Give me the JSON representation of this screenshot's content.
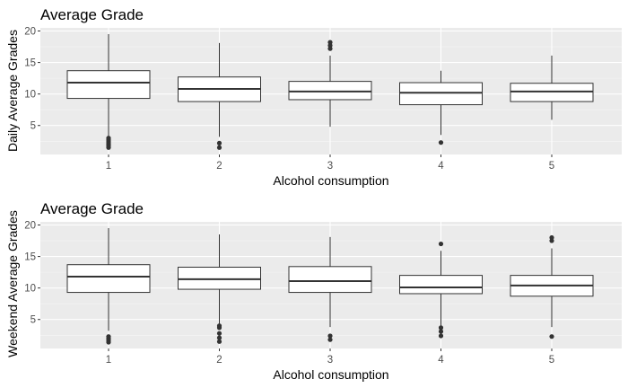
{
  "chart_data": [
    {
      "type": "boxplot",
      "title": "Average Grade",
      "xlabel": "Alcohol consumption",
      "ylabel": "Daily Average Grades",
      "categories": [
        "1",
        "2",
        "3",
        "4",
        "5"
      ],
      "yticks": [
        "5",
        "10",
        "15",
        "20"
      ],
      "ylim": [
        0.4,
        20.5
      ],
      "grid": true,
      "boxes": [
        {
          "category": "1",
          "whisker_low": 3.3,
          "q1": 9.3,
          "median": 11.8,
          "q3": 13.7,
          "whisker_high": 19.5,
          "outliers": [
            1.5,
            1.8,
            2.1,
            2.4,
            2.7,
            3.0
          ]
        },
        {
          "category": "2",
          "whisker_low": 3.2,
          "q1": 8.8,
          "median": 10.8,
          "q3": 12.7,
          "whisker_high": 18.1,
          "outliers": [
            1.5,
            2.2
          ]
        },
        {
          "category": "3",
          "whisker_low": 4.8,
          "q1": 9.1,
          "median": 10.4,
          "q3": 12.0,
          "whisker_high": 16.1,
          "outliers": [
            17.2,
            17.7,
            18.2
          ]
        },
        {
          "category": "4",
          "whisker_low": 3.5,
          "q1": 8.3,
          "median": 10.2,
          "q3": 11.8,
          "whisker_high": 13.7,
          "outliers": [
            2.3
          ]
        },
        {
          "category": "5",
          "whisker_low": 5.9,
          "q1": 8.8,
          "median": 10.4,
          "q3": 11.7,
          "whisker_high": 16.1,
          "outliers": []
        }
      ]
    },
    {
      "type": "boxplot",
      "title": "Average Grade",
      "xlabel": "Alcohol consumption",
      "ylabel": "Weekend Average Grades",
      "categories": [
        "1",
        "2",
        "3",
        "4",
        "5"
      ],
      "yticks": [
        "5",
        "10",
        "15",
        "20"
      ],
      "ylim": [
        0.4,
        20.5
      ],
      "grid": true,
      "boxes": [
        {
          "category": "1",
          "whisker_low": 3.2,
          "q1": 9.3,
          "median": 11.8,
          "q3": 13.7,
          "whisker_high": 19.5,
          "outliers": [
            1.4,
            1.7,
            2.0,
            2.3
          ]
        },
        {
          "category": "2",
          "whisker_low": 4.3,
          "q1": 9.8,
          "median": 11.4,
          "q3": 13.3,
          "whisker_high": 18.5,
          "outliers": [
            1.5,
            2.1,
            2.8,
            3.7,
            4.0
          ]
        },
        {
          "category": "3",
          "whisker_low": 3.8,
          "q1": 9.3,
          "median": 11.1,
          "q3": 13.4,
          "whisker_high": 18.1,
          "outliers": [
            1.8,
            2.4
          ]
        },
        {
          "category": "4",
          "whisker_low": 4.0,
          "q1": 9.1,
          "median": 10.1,
          "q3": 12.0,
          "whisker_high": 15.9,
          "outliers": [
            2.4,
            3.1,
            3.7,
            17.0
          ]
        },
        {
          "category": "5",
          "whisker_low": 3.8,
          "q1": 8.7,
          "median": 10.4,
          "q3": 12.0,
          "whisker_high": 16.3,
          "outliers": [
            2.3,
            17.5,
            18.0
          ]
        }
      ]
    }
  ]
}
